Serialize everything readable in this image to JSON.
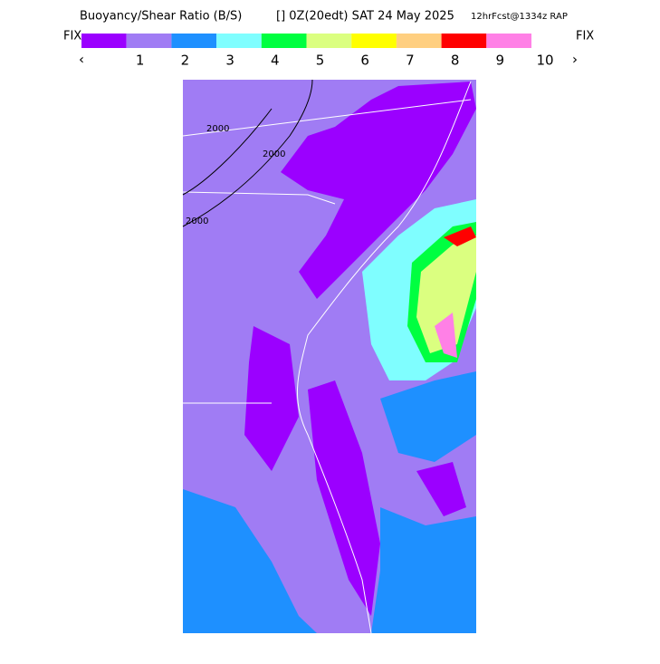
{
  "header": {
    "title": "Buoyancy/Shear Ratio (B/S)",
    "time": "[] 0Z(20edt) SAT 24 May 2025",
    "forecast": "12hrFcst@1334z RAP"
  },
  "legend": {
    "left": "FIX",
    "right": "FIX",
    "prev": "‹",
    "next": "›",
    "colors": [
      "#9b00ff",
      "#a07cf4",
      "#1e90ff",
      "#7ffeff",
      "#00ff40",
      "#dbff80",
      "#ffff00",
      "#ffcf80",
      "#ff0000",
      "#ff80e6"
    ],
    "labels": [
      "1",
      "2",
      "3",
      "4",
      "5",
      "6",
      "7",
      "8",
      "9",
      "10"
    ]
  },
  "map": {
    "contours": [
      "2000",
      "2000",
      "2000"
    ]
  }
}
